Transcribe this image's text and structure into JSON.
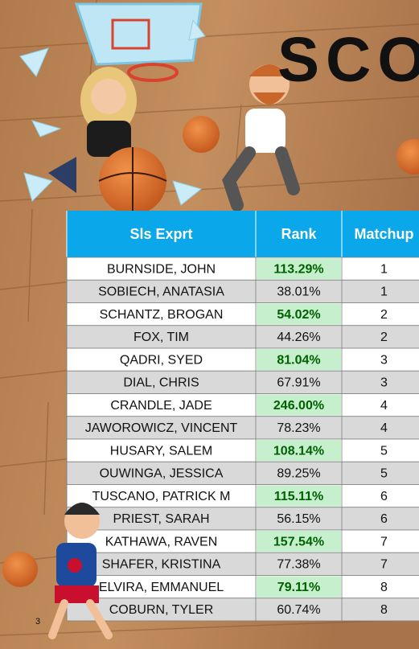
{
  "title": "SCO",
  "page_number": "3",
  "table": {
    "header": [
      "Sls Exprt",
      "Rank",
      "Matchup"
    ],
    "rows": [
      {
        "name": "BURNSIDE, JOHN",
        "rank": "113.29%",
        "matchup": 1,
        "win": true
      },
      {
        "name": "SOBIECH, ANATASIA",
        "rank": "38.01%",
        "matchup": 1,
        "win": false
      },
      {
        "name": "SCHANTZ, BROGAN",
        "rank": "54.02%",
        "matchup": 2,
        "win": true
      },
      {
        "name": "FOX, TIM",
        "rank": "44.26%",
        "matchup": 2,
        "win": false
      },
      {
        "name": "QADRI, SYED",
        "rank": "81.04%",
        "matchup": 3,
        "win": true
      },
      {
        "name": "DIAL, CHRIS",
        "rank": "67.91%",
        "matchup": 3,
        "win": false
      },
      {
        "name": "CRANDLE, JADE",
        "rank": "246.00%",
        "matchup": 4,
        "win": true
      },
      {
        "name": "JAWOROWICZ, VINCENT",
        "rank": "78.23%",
        "matchup": 4,
        "win": false
      },
      {
        "name": "HUSARY, SALEM",
        "rank": "108.14%",
        "matchup": 5,
        "win": true
      },
      {
        "name": "OUWINGA, JESSICA",
        "rank": "89.25%",
        "matchup": 5,
        "win": false
      },
      {
        "name": "TUSCANO, PATRICK M",
        "rank": "115.11%",
        "matchup": 6,
        "win": true
      },
      {
        "name": "PRIEST, SARAH",
        "rank": "56.15%",
        "matchup": 6,
        "win": false
      },
      {
        "name": "KATHAWA, RAVEN",
        "rank": "157.54%",
        "matchup": 7,
        "win": true
      },
      {
        "name": "SHAFER, KRISTINA",
        "rank": "77.38%",
        "matchup": 7,
        "win": false
      },
      {
        "name": "ELVIRA, EMMANUEL",
        "rank": "79.11%",
        "matchup": 8,
        "win": true
      },
      {
        "name": "COBURN, TYLER",
        "rank": "60.74%",
        "matchup": 8,
        "win": false
      }
    ]
  }
}
